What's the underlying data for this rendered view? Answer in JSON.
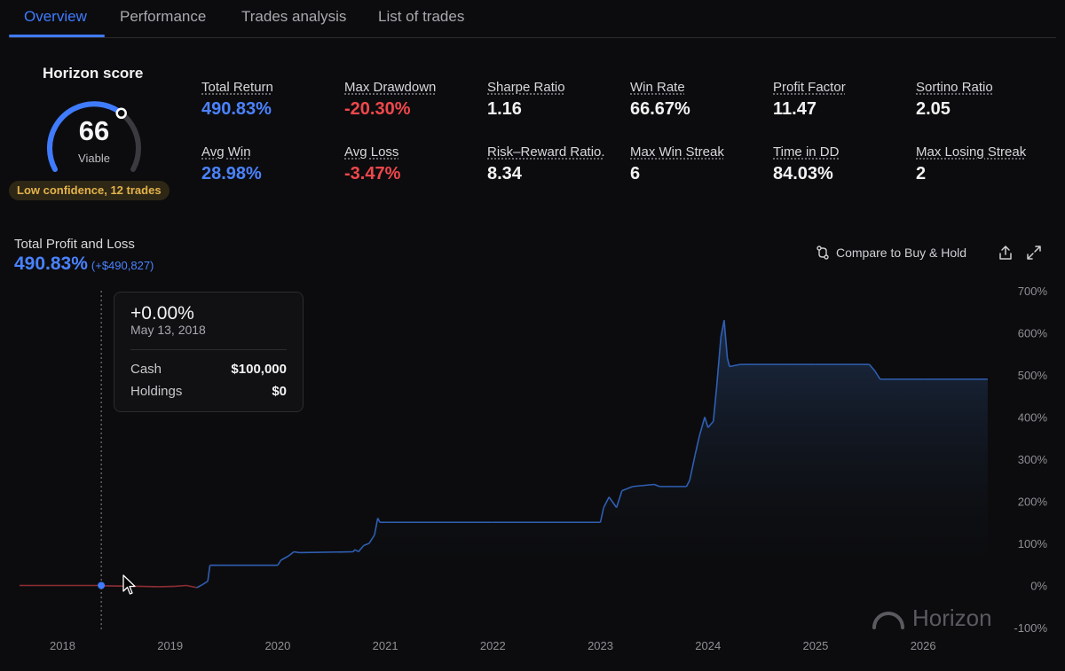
{
  "tabs": [
    {
      "label": "Overview",
      "active": true
    },
    {
      "label": "Performance",
      "active": false
    },
    {
      "label": "Trades analysis",
      "active": false
    },
    {
      "label": "List of trades",
      "active": false
    }
  ],
  "score": {
    "title": "Horizon score",
    "value": "66",
    "label": "Viable",
    "progress": 0.66,
    "confidence": "Low confidence, 12 trades"
  },
  "metrics": [
    {
      "label": "Total Return",
      "value": "490.83%",
      "tone": "blue"
    },
    {
      "label": "Max Drawdown",
      "value": "-20.30%",
      "tone": "red"
    },
    {
      "label": "Sharpe Ratio",
      "value": "1.16",
      "tone": "white"
    },
    {
      "label": "Win Rate",
      "value": "66.67%",
      "tone": "white"
    },
    {
      "label": "Profit Factor",
      "value": "11.47",
      "tone": "white"
    },
    {
      "label": "Sortino Ratio",
      "value": "2.05",
      "tone": "white"
    },
    {
      "label": "Avg Win",
      "value": "28.98%",
      "tone": "blue"
    },
    {
      "label": "Avg Loss",
      "value": "-3.47%",
      "tone": "red"
    },
    {
      "label": "Risk–Reward Ratio.",
      "value": "8.34",
      "tone": "white"
    },
    {
      "label": "Max Win Streak",
      "value": "6",
      "tone": "white"
    },
    {
      "label": "Time in DD",
      "value": "84.03%",
      "tone": "white"
    },
    {
      "label": "Max Losing Streak",
      "value": "2",
      "tone": "white"
    }
  ],
  "pnl": {
    "title": "Total Profit and Loss",
    "value": "490.83%",
    "sub": "(+$490,827)"
  },
  "toolbar": {
    "compare_label": "Compare to Buy & Hold",
    "compare_icon": "compare-arrows-icon",
    "share_icon": "share-icon",
    "expand_icon": "expand-icon"
  },
  "tooltip": {
    "value": "+0.00%",
    "date": "May 13, 2018",
    "rows": [
      {
        "label": "Cash",
        "value": "$100,000"
      },
      {
        "label": "Holdings",
        "value": "$0"
      }
    ]
  },
  "watermark": "Horizon",
  "colors": {
    "accent": "#3f7bff",
    "positive": "#4a82ff",
    "negative": "#f0474b",
    "line_profit": "#2f5fb3",
    "line_loss": "#8e2e34",
    "warning": "#e3b24a"
  },
  "chart_data": {
    "type": "area",
    "ylabel_ticks": [
      "700%",
      "600%",
      "500%",
      "400%",
      "300%",
      "200%",
      "100%",
      "0%",
      "-100%"
    ],
    "xlabel_ticks": [
      "2018",
      "2019",
      "2020",
      "2021",
      "2022",
      "2023",
      "2024",
      "2025",
      "2026"
    ],
    "ylim": [
      -100,
      700
    ],
    "xlim": [
      2017.6,
      2026.7
    ],
    "hover_x": 2018.36,
    "series": [
      {
        "x": [
          2017.6,
          2018.36,
          2018.4,
          2018.7,
          2018.9,
          2019.05,
          2019.15,
          2019.25,
          2019.3,
          2019.35,
          2019.37,
          2020.0,
          2020.03,
          2020.1,
          2020.15,
          2020.2,
          2020.7,
          2020.72,
          2020.75,
          2020.8,
          2020.85,
          2020.9,
          2020.93,
          2020.95,
          2021.0,
          2022.0,
          2023.0,
          2023.03,
          2023.08,
          2023.15,
          2023.2,
          2023.25,
          2023.3,
          2023.5,
          2023.55,
          2023.8,
          2023.83,
          2023.88,
          2023.92,
          2023.97,
          2024.0,
          2024.05,
          2024.08,
          2024.12,
          2024.15,
          2024.18,
          2024.2,
          2024.3,
          2025.0,
          2025.5,
          2025.55,
          2025.6,
          2026.0,
          2026.6
        ],
        "y": [
          0,
          0,
          -1,
          -2,
          -3,
          -2,
          0,
          -5,
          2,
          10,
          48,
          48,
          60,
          70,
          80,
          78,
          80,
          85,
          80,
          95,
          100,
          120,
          160,
          150,
          150,
          150,
          150,
          185,
          210,
          185,
          225,
          230,
          235,
          240,
          235,
          235,
          250,
          310,
          355,
          400,
          375,
          390,
          470,
          590,
          630,
          540,
          520,
          525,
          525,
          525,
          510,
          490,
          490,
          490
        ]
      }
    ]
  }
}
